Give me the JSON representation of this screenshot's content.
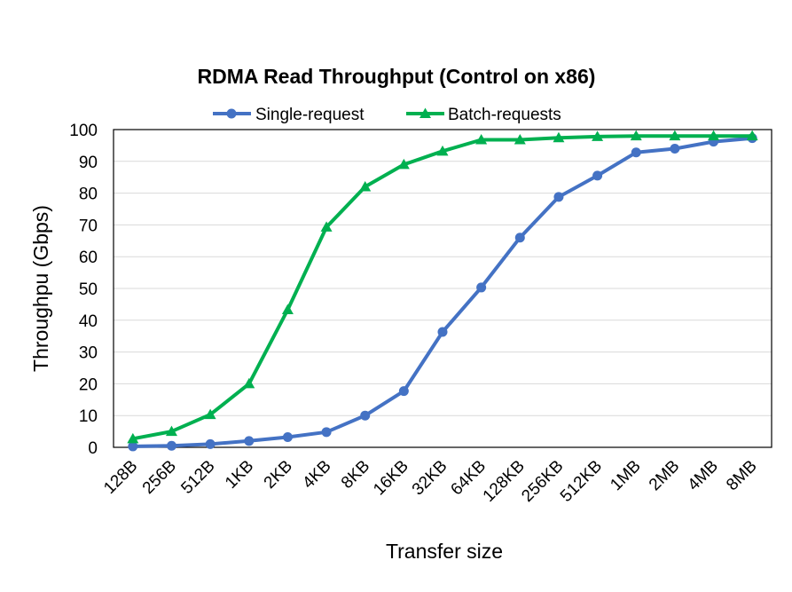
{
  "chart_data": {
    "type": "line",
    "title": "RDMA Read Throughput (Control on x86)",
    "xlabel": "Transfer size",
    "ylabel": "Throughpu (Gbps)",
    "categories": [
      "128B",
      "256B",
      "512B",
      "1KB",
      "2KB",
      "4KB",
      "8KB",
      "16KB",
      "32KB",
      "64KB",
      "128KB",
      "256KB",
      "512KB",
      "1MB",
      "2MB",
      "4MB",
      "8MB"
    ],
    "ylim": [
      0,
      100
    ],
    "yticks": [
      0,
      10,
      20,
      30,
      40,
      50,
      60,
      70,
      80,
      90,
      100
    ],
    "grid": true,
    "legend": "top",
    "series": [
      {
        "name": "Single-request",
        "color": "#4472C4",
        "marker": "circle",
        "values": [
          0.3,
          0.5,
          1.0,
          2.0,
          3.2,
          4.8,
          10.0,
          17.7,
          36.3,
          50.3,
          66.0,
          78.8,
          85.5,
          92.8,
          94.0,
          96.2,
          97.3
        ]
      },
      {
        "name": "Batch-requests",
        "color": "#00B050",
        "marker": "triangle",
        "values": [
          2.7,
          5.0,
          10.3,
          20.0,
          43.3,
          69.3,
          82.0,
          89.0,
          93.2,
          96.8,
          96.8,
          97.4,
          97.8,
          98.0,
          98.0,
          98.0,
          98.0
        ]
      }
    ]
  }
}
